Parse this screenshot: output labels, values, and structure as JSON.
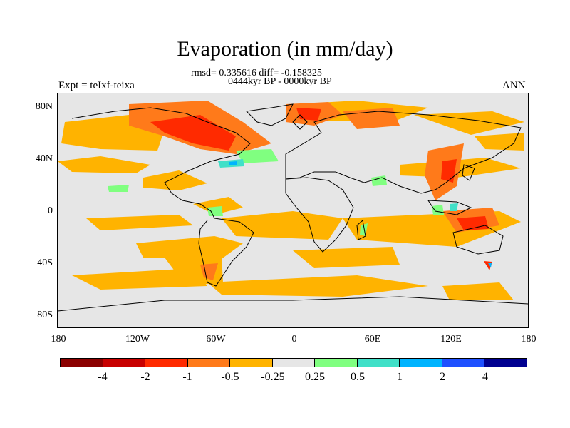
{
  "title": "Evaporation (in mm/day)",
  "stats": "rmsd= 0.335616 diff= -0.158325",
  "period": "0444kyr BP - 0000kyr BP",
  "experiment": "Expt = teIxf-teixa",
  "season": "ANN",
  "map": {
    "background_color": "#e6e6e6",
    "y_ticks": [
      "80N",
      "40N",
      "0",
      "40S",
      "80S"
    ],
    "x_ticks": [
      "180",
      "120W",
      "60W",
      "0",
      "60E",
      "120E",
      "180"
    ]
  },
  "colorbar": {
    "colors": [
      "#8b0000",
      "#c80000",
      "#ff2a00",
      "#ff7a1a",
      "#ffb300",
      "#e6e6e6",
      "#80ff80",
      "#40e0c8",
      "#00b4ff",
      "#1e50ff",
      "#000090"
    ],
    "labels": [
      "-4",
      "-2",
      "-1",
      "-0.5",
      "-0.25",
      "0.25",
      "0.5",
      "1",
      "2",
      "4"
    ]
  }
}
